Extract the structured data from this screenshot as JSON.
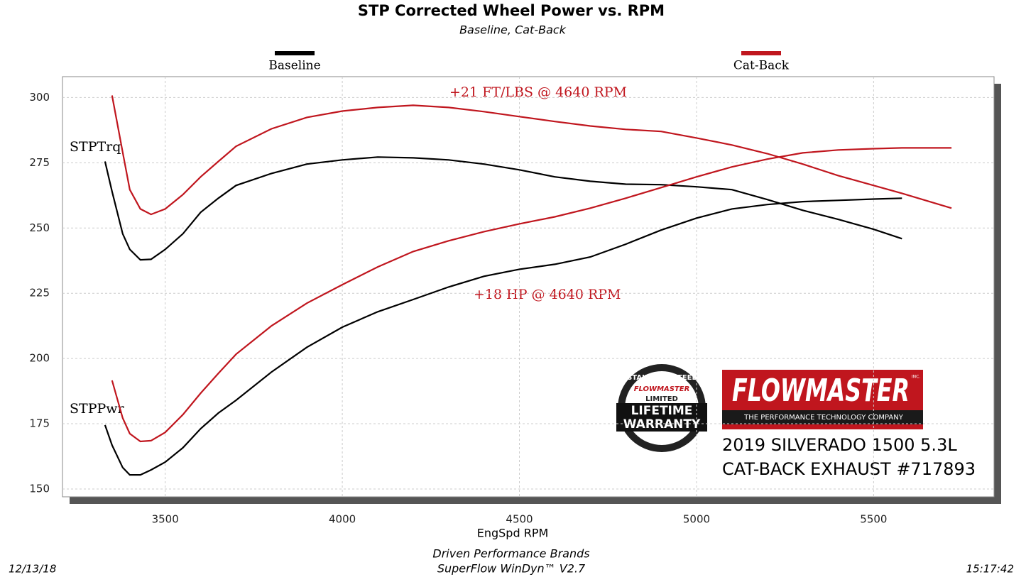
{
  "chart_data": {
    "type": "line",
    "title": "STP Corrected Wheel Power vs. RPM",
    "subtitle": "Baseline, Cat-Back",
    "x_label": "EngSpd  RPM",
    "curve_labels": [
      "STPTrq",
      "STPPwr"
    ],
    "annotations": [
      "+21 FT/LBS @ 4640 RPM",
      "+18 HP @ 4640 RPM"
    ],
    "x": [
      3330,
      3350,
      3380,
      3400,
      3430,
      3460,
      3500,
      3550,
      3600,
      3650,
      3700,
      3800,
      3900,
      4000,
      4100,
      4200,
      4300,
      4400,
      4500,
      4600,
      4700,
      4800,
      4900,
      5000,
      5100,
      5200,
      5300,
      5400,
      5500,
      5580,
      5720
    ],
    "series": [
      {
        "name": "Baseline",
        "color": "#000000",
        "torque": [
          275.5,
          264,
          247.8,
          241.8,
          237.8,
          238,
          241.8,
          247.8,
          256,
          261.4,
          266.3,
          270.9,
          274.5,
          276.1,
          277.2,
          276.9,
          276.1,
          274.5,
          272.3,
          269.6,
          267.9,
          266.8,
          266.6,
          265.8,
          264.7,
          260.9,
          256.8,
          253.3,
          249.5,
          245.9,
          null
        ],
        "power": [
          174.5,
          166.8,
          158.2,
          155.4,
          155.4,
          157.3,
          160.3,
          165.8,
          173.1,
          179.1,
          184,
          194.8,
          204.3,
          212,
          217.9,
          222.6,
          227.4,
          231.5,
          234.2,
          236.1,
          238.9,
          243.8,
          249.2,
          253.8,
          257.3,
          259,
          260.1,
          260.6,
          261.1,
          261.4,
          null
        ]
      },
      {
        "name": "Cat-Back",
        "color": "#c0161e",
        "torque": [
          null,
          300.8,
          279,
          264.7,
          257.3,
          255.2,
          257.3,
          262.8,
          269.6,
          275.5,
          281.3,
          288,
          292.4,
          294.8,
          296.2,
          297,
          296.2,
          294.6,
          292.7,
          290.8,
          289.1,
          287.8,
          287,
          284.5,
          281.8,
          278.5,
          274.5,
          270.1,
          266.3,
          263.3,
          257.6
        ],
        "power": [
          null,
          191.6,
          177.2,
          171.2,
          168.2,
          168.5,
          171.7,
          178.5,
          186.7,
          194.3,
          201.6,
          212.5,
          221.2,
          228.3,
          235.1,
          241,
          245.1,
          248.6,
          251.6,
          254.3,
          257.6,
          261.4,
          265.5,
          269.6,
          273.4,
          276.4,
          278.8,
          279.9,
          280.4,
          280.7,
          280.7
        ]
      }
    ],
    "xlim": [
      3210,
      5840
    ],
    "xticks": [
      3500,
      4000,
      4500,
      5000,
      5500
    ],
    "ylim": [
      147,
      308
    ],
    "yticks": [
      150,
      175,
      200,
      225,
      250,
      275,
      300
    ],
    "grid": true
  },
  "footer": {
    "date": "12/13/18",
    "company": "Driven Performance Brands",
    "software": "SuperFlow WinDyn™  V2.7",
    "time": "15:17:42"
  },
  "badge": {
    "top": "STAINLESS STEEL",
    "brand": "FLOWMASTER",
    "middle": "LIMITED",
    "line1": "LIFETIME",
    "line2": "WARRANTY"
  },
  "logo": {
    "brand": "FLOWMASTER",
    "inc": "INC.",
    "tagline": "THE PERFORMANCE TECHNOLOGY COMPANY"
  },
  "caption": [
    "2019 SILVERADO 1500 5.3L",
    "CAT-BACK EXHAUST #717893"
  ]
}
